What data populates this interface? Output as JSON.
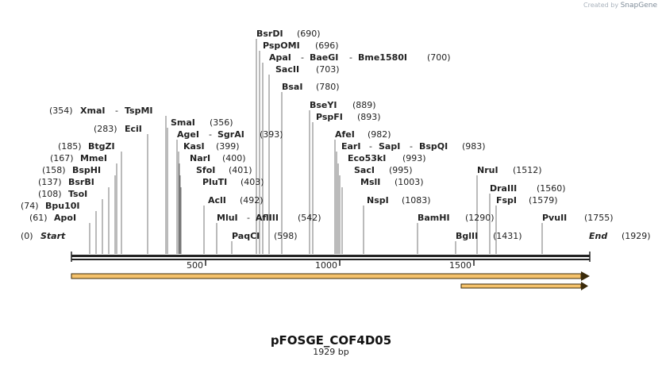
{
  "credit": {
    "prefix": "Created by",
    "brand": "SnapGene"
  },
  "title": "pFOSGE_COF4D05",
  "length_label": "1929 bp",
  "sequence_length": 1929,
  "ruler_ticks": [
    "500",
    "1000",
    "1500"
  ],
  "ends": {
    "start": {
      "name": "Start",
      "pos": "(0)"
    },
    "end": {
      "name": "End",
      "pos": "(1929)"
    }
  },
  "left_sites": [
    {
      "name": "ApoI",
      "pos": "(61)"
    },
    {
      "name": "Bpu10I",
      "pos": "(74)"
    },
    {
      "name": "TsoI",
      "pos": "(108)"
    },
    {
      "name": "BsrBI",
      "pos": "(137)"
    },
    {
      "name": "BspHI",
      "pos": "(158)"
    },
    {
      "name": "MmeI",
      "pos": "(167)"
    },
    {
      "name": "BtgZI",
      "pos": "(185)"
    },
    {
      "name": "EciI",
      "pos": "(283)"
    }
  ],
  "xmai_group": {
    "names": [
      "XmaI",
      "TspMI"
    ],
    "pos": "(354)"
  },
  "mid_sites": [
    {
      "names": [
        "SmaI"
      ],
      "pos": "(356)"
    },
    {
      "names": [
        "AgeI",
        "SgrAI"
      ],
      "pos": "(393)"
    },
    {
      "names": [
        "KasI"
      ],
      "pos": "(399)"
    },
    {
      "names": [
        "NarI"
      ],
      "pos": "(400)"
    },
    {
      "names": [
        "SfoI"
      ],
      "pos": "(401)"
    },
    {
      "names": [
        "PluTI"
      ],
      "pos": "(403)"
    },
    {
      "names": [
        "AclI"
      ],
      "pos": "(492)"
    },
    {
      "names": [
        "MluI",
        "AflIII"
      ],
      "pos": "(542)"
    },
    {
      "names": [
        "PaqCI"
      ],
      "pos": "(598)"
    }
  ],
  "top_sites": [
    {
      "names": [
        "BsrDI"
      ],
      "pos": "(690)"
    },
    {
      "names": [
        "PspOMI"
      ],
      "pos": "(696)"
    },
    {
      "names": [
        "ApaI",
        "BaeGI",
        "Bme1580I"
      ],
      "pos": "(700)"
    },
    {
      "names": [
        "SacII"
      ],
      "pos": "(703)"
    },
    {
      "names": [
        "BsaI"
      ],
      "pos": "(780)"
    }
  ],
  "center_sites": [
    {
      "names": [
        "BseYI"
      ],
      "pos": "(889)"
    },
    {
      "names": [
        "PspFI"
      ],
      "pos": "(893)"
    },
    {
      "names": [
        "AfeI"
      ],
      "pos": "(982)"
    },
    {
      "names": [
        "EarI",
        "SapI",
        "BspQI"
      ],
      "pos": "(983)"
    },
    {
      "names": [
        "Eco53kI"
      ],
      "pos": "(993)"
    },
    {
      "names": [
        "SacI"
      ],
      "pos": "(995)"
    },
    {
      "names": [
        "MslI"
      ],
      "pos": "(1003)"
    },
    {
      "names": [
        "NspI"
      ],
      "pos": "(1083)"
    },
    {
      "names": [
        "BamHI"
      ],
      "pos": "(1290)"
    },
    {
      "names": [
        "BglII"
      ],
      "pos": "(1431)"
    }
  ],
  "right_sites": [
    {
      "names": [
        "NruI"
      ],
      "pos": "(1512)"
    },
    {
      "names": [
        "DraIII"
      ],
      "pos": "(1560)"
    },
    {
      "names": [
        "FspI"
      ],
      "pos": "(1579)"
    },
    {
      "names": [
        "PvuII"
      ],
      "pos": "(1755)"
    }
  ],
  "features": [
    {
      "name": "main-feature-arrow",
      "start": 0,
      "end": 1929,
      "color": "#f5c26b"
    },
    {
      "name": "secondary-feature-arrow",
      "start": 1452,
      "end": 1929,
      "color": "#f5c26b"
    }
  ],
  "colors": {
    "backbone": "#222222",
    "feature": "#f5c26b",
    "feature_border": "#3a2a0a"
  }
}
